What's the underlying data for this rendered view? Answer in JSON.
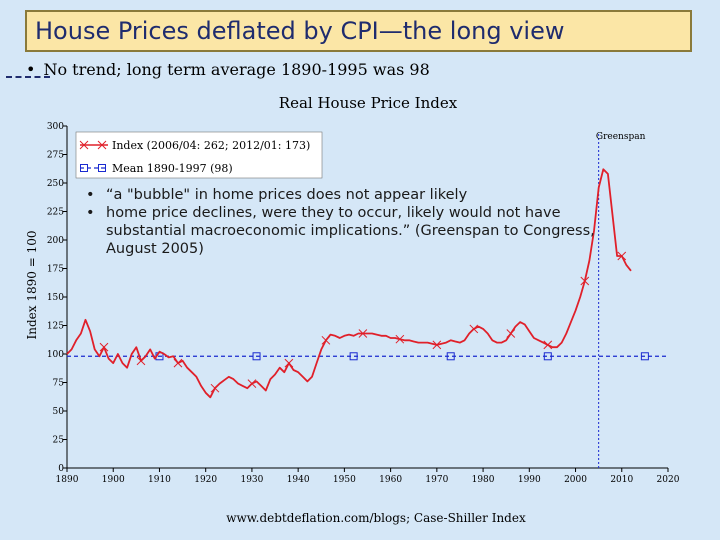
{
  "slide": {
    "title": "House Prices deflated by CPI—the long view",
    "bullet": "No trend; long term average 1890-1995 was 98",
    "callout": [
      "“a \"bubble\" in home prices does not appear likely",
      "home price declines, were they to occur, likely would not have substantial macroeconomic implications.” (Greenspan to Congress, August 2005)"
    ],
    "bullet_glyph": "•"
  },
  "chart_data": {
    "type": "line",
    "title": "Real House Price Index",
    "ylabel": "Index 1890 = 100",
    "xlabel": "",
    "source": "www.debtdeflation.com/blogs; Case-Shiller Index",
    "xlim": [
      1890,
      2020
    ],
    "ylim": [
      0,
      300
    ],
    "xticks": [
      1890,
      1900,
      1910,
      1920,
      1930,
      1940,
      1950,
      1960,
      1970,
      1980,
      1990,
      2000,
      2010,
      2020
    ],
    "yticks": [
      0,
      25,
      50,
      75,
      100,
      125,
      150,
      175,
      200,
      225,
      250,
      275,
      300
    ],
    "annotation": {
      "label": "Greenspan",
      "x": 2005
    },
    "legend": {
      "placement": "top-left"
    },
    "series": [
      {
        "name": "Index (2006/04: 262; 2012/01: 173)",
        "color": "#e0202a",
        "marker": "x",
        "marker_every": 8,
        "points": [
          [
            1890,
            100
          ],
          [
            1891,
            104
          ],
          [
            1892,
            112
          ],
          [
            1893,
            118
          ],
          [
            1894,
            130
          ],
          [
            1895,
            120
          ],
          [
            1896,
            104
          ],
          [
            1897,
            98
          ],
          [
            1898,
            106
          ],
          [
            1899,
            96
          ],
          [
            1900,
            92
          ],
          [
            1901,
            100
          ],
          [
            1902,
            92
          ],
          [
            1903,
            88
          ],
          [
            1904,
            100
          ],
          [
            1905,
            106
          ],
          [
            1906,
            94
          ],
          [
            1907,
            98
          ],
          [
            1908,
            104
          ],
          [
            1909,
            96
          ],
          [
            1910,
            102
          ],
          [
            1911,
            100
          ],
          [
            1912,
            97
          ],
          [
            1913,
            98
          ],
          [
            1914,
            92
          ],
          [
            1915,
            94
          ],
          [
            1916,
            88
          ],
          [
            1917,
            84
          ],
          [
            1918,
            80
          ],
          [
            1919,
            72
          ],
          [
            1920,
            66
          ],
          [
            1921,
            62
          ],
          [
            1922,
            70
          ],
          [
            1923,
            74
          ],
          [
            1924,
            77
          ],
          [
            1925,
            80
          ],
          [
            1926,
            78
          ],
          [
            1927,
            74
          ],
          [
            1928,
            72
          ],
          [
            1929,
            70
          ],
          [
            1930,
            74
          ],
          [
            1931,
            76
          ],
          [
            1932,
            72
          ],
          [
            1933,
            68
          ],
          [
            1934,
            78
          ],
          [
            1935,
            82
          ],
          [
            1936,
            88
          ],
          [
            1937,
            84
          ],
          [
            1938,
            92
          ],
          [
            1939,
            86
          ],
          [
            1940,
            84
          ],
          [
            1941,
            80
          ],
          [
            1942,
            76
          ],
          [
            1943,
            80
          ],
          [
            1944,
            92
          ],
          [
            1945,
            104
          ],
          [
            1946,
            112
          ],
          [
            1947,
            117
          ],
          [
            1948,
            116
          ],
          [
            1949,
            114
          ],
          [
            1950,
            116
          ],
          [
            1951,
            117
          ],
          [
            1952,
            116
          ],
          [
            1953,
            118
          ],
          [
            1954,
            118
          ],
          [
            1955,
            118
          ],
          [
            1956,
            118
          ],
          [
            1957,
            117
          ],
          [
            1958,
            116
          ],
          [
            1959,
            116
          ],
          [
            1960,
            114
          ],
          [
            1961,
            114
          ],
          [
            1962,
            113
          ],
          [
            1963,
            112
          ],
          [
            1964,
            112
          ],
          [
            1965,
            111
          ],
          [
            1966,
            110
          ],
          [
            1967,
            110
          ],
          [
            1968,
            110
          ],
          [
            1969,
            109
          ],
          [
            1970,
            108
          ],
          [
            1971,
            109
          ],
          [
            1972,
            110
          ],
          [
            1973,
            112
          ],
          [
            1974,
            111
          ],
          [
            1975,
            110
          ],
          [
            1976,
            112
          ],
          [
            1977,
            118
          ],
          [
            1978,
            122
          ],
          [
            1979,
            124
          ],
          [
            1980,
            122
          ],
          [
            1981,
            118
          ],
          [
            1982,
            112
          ],
          [
            1983,
            110
          ],
          [
            1984,
            110
          ],
          [
            1985,
            112
          ],
          [
            1986,
            118
          ],
          [
            1987,
            124
          ],
          [
            1988,
            128
          ],
          [
            1989,
            126
          ],
          [
            1990,
            120
          ],
          [
            1991,
            114
          ],
          [
            1992,
            112
          ],
          [
            1993,
            110
          ],
          [
            1994,
            108
          ],
          [
            1995,
            106
          ],
          [
            1996,
            106
          ],
          [
            1997,
            110
          ],
          [
            1998,
            118
          ],
          [
            1999,
            128
          ],
          [
            2000,
            138
          ],
          [
            2001,
            150
          ],
          [
            2002,
            164
          ],
          [
            2003,
            182
          ],
          [
            2004,
            208
          ],
          [
            2005,
            246
          ],
          [
            2006,
            262
          ],
          [
            2007,
            258
          ],
          [
            2008,
            222
          ],
          [
            2009,
            186
          ],
          [
            2010,
            186
          ],
          [
            2011,
            178
          ],
          [
            2012,
            173
          ]
        ]
      },
      {
        "name": "Mean 1890-1997 (98)",
        "color": "#1a2ad0",
        "marker": "square",
        "mean_value": 98,
        "x_range": [
          1890,
          2020
        ],
        "marker_x": [
          1910,
          1931,
          1952,
          1973,
          1994,
          2015
        ]
      }
    ],
    "annotations": [
      "Greenspan"
    ]
  }
}
